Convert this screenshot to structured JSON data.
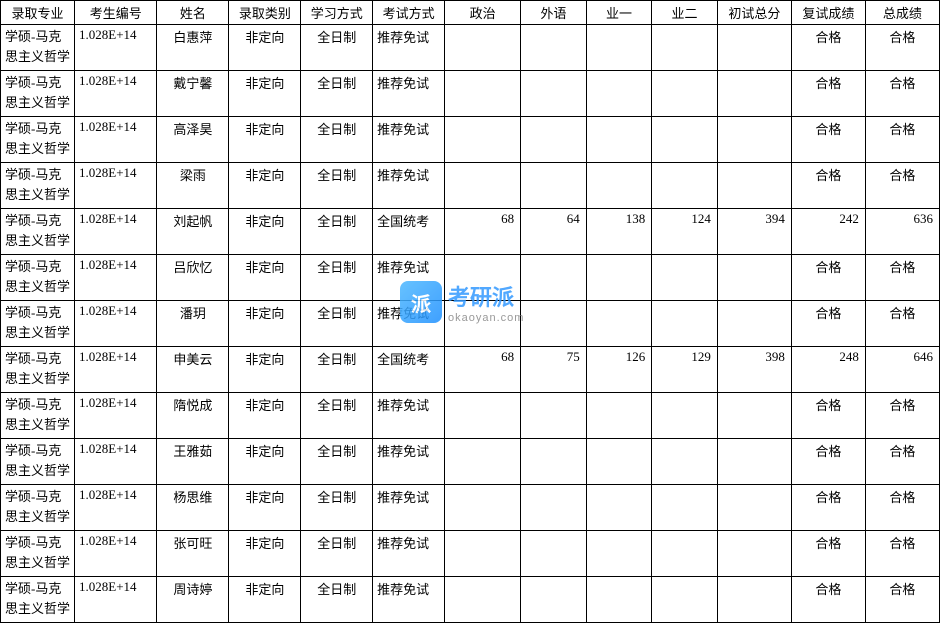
{
  "table": {
    "columns": [
      "录取专业",
      "考生编号",
      "姓名",
      "录取类别",
      "学习方式",
      "考试方式",
      "政治",
      "外语",
      "业一",
      "业二",
      "初试总分",
      "复试成绩",
      "总成绩"
    ],
    "rows": [
      {
        "major": "学硕-马克思主义哲学",
        "id": "1.028E+14",
        "name": "白惠萍",
        "type": "非定向",
        "study": "全日制",
        "exam": "推荐免试",
        "pol": "",
        "lang": "",
        "s1": "",
        "s2": "",
        "init": "",
        "re": "合格",
        "total": "合格"
      },
      {
        "major": "学硕-马克思主义哲学",
        "id": "1.028E+14",
        "name": "戴宁馨",
        "type": "非定向",
        "study": "全日制",
        "exam": "推荐免试",
        "pol": "",
        "lang": "",
        "s1": "",
        "s2": "",
        "init": "",
        "re": "合格",
        "total": "合格"
      },
      {
        "major": "学硕-马克思主义哲学",
        "id": "1.028E+14",
        "name": "高泽昊",
        "type": "非定向",
        "study": "全日制",
        "exam": "推荐免试",
        "pol": "",
        "lang": "",
        "s1": "",
        "s2": "",
        "init": "",
        "re": "合格",
        "total": "合格"
      },
      {
        "major": "学硕-马克思主义哲学",
        "id": "1.028E+14",
        "name": "梁雨",
        "type": "非定向",
        "study": "全日制",
        "exam": "推荐免试",
        "pol": "",
        "lang": "",
        "s1": "",
        "s2": "",
        "init": "",
        "re": "合格",
        "total": "合格"
      },
      {
        "major": "学硕-马克思主义哲学",
        "id": "1.028E+14",
        "name": "刘起帆",
        "type": "非定向",
        "study": "全日制",
        "exam": "全国统考",
        "pol": "68",
        "lang": "64",
        "s1": "138",
        "s2": "124",
        "init": "394",
        "re": "242",
        "total": "636"
      },
      {
        "major": "学硕-马克思主义哲学",
        "id": "1.028E+14",
        "name": "吕欣忆",
        "type": "非定向",
        "study": "全日制",
        "exam": "推荐免试",
        "pol": "",
        "lang": "",
        "s1": "",
        "s2": "",
        "init": "",
        "re": "合格",
        "total": "合格"
      },
      {
        "major": "学硕-马克思主义哲学",
        "id": "1.028E+14",
        "name": "潘玥",
        "type": "非定向",
        "study": "全日制",
        "exam": "推荐免试",
        "pol": "",
        "lang": "",
        "s1": "",
        "s2": "",
        "init": "",
        "re": "合格",
        "total": "合格"
      },
      {
        "major": "学硕-马克思主义哲学",
        "id": "1.028E+14",
        "name": "申美云",
        "type": "非定向",
        "study": "全日制",
        "exam": "全国统考",
        "pol": "68",
        "lang": "75",
        "s1": "126",
        "s2": "129",
        "init": "398",
        "re": "248",
        "total": "646"
      },
      {
        "major": "学硕-马克思主义哲学",
        "id": "1.028E+14",
        "name": "隋悦成",
        "type": "非定向",
        "study": "全日制",
        "exam": "推荐免试",
        "pol": "",
        "lang": "",
        "s1": "",
        "s2": "",
        "init": "",
        "re": "合格",
        "total": "合格"
      },
      {
        "major": "学硕-马克思主义哲学",
        "id": "1.028E+14",
        "name": "王雅茹",
        "type": "非定向",
        "study": "全日制",
        "exam": "推荐免试",
        "pol": "",
        "lang": "",
        "s1": "",
        "s2": "",
        "init": "",
        "re": "合格",
        "total": "合格"
      },
      {
        "major": "学硕-马克思主义哲学",
        "id": "1.028E+14",
        "name": "杨思维",
        "type": "非定向",
        "study": "全日制",
        "exam": "推荐免试",
        "pol": "",
        "lang": "",
        "s1": "",
        "s2": "",
        "init": "",
        "re": "合格",
        "total": "合格"
      },
      {
        "major": "学硕-马克思主义哲学",
        "id": "1.028E+14",
        "name": "张可旺",
        "type": "非定向",
        "study": "全日制",
        "exam": "推荐免试",
        "pol": "",
        "lang": "",
        "s1": "",
        "s2": "",
        "init": "",
        "re": "合格",
        "total": "合格"
      },
      {
        "major": "学硕-马克思主义哲学",
        "id": "1.028E+14",
        "name": "周诗婷",
        "type": "非定向",
        "study": "全日制",
        "exam": "推荐免试",
        "pol": "",
        "lang": "",
        "s1": "",
        "s2": "",
        "init": "",
        "re": "合格",
        "total": "合格"
      }
    ],
    "major_split": {
      "line1": "学硕-马克",
      "line2": "思主义哲学"
    }
  },
  "watermark": {
    "icon_text": "派",
    "main": "考研派",
    "sub": "okaoyan.com"
  },
  "styling": {
    "border_color": "#000000",
    "background_color": "#ffffff",
    "font_family": "SimSun",
    "base_fontsize": 13,
    "header_row_height": 22,
    "data_row_height": 46,
    "column_widths": {
      "major": 70,
      "id": 78,
      "name": 68,
      "type": 68,
      "study": 68,
      "exam": 68,
      "pol": 72,
      "lang": 62,
      "s1": 62,
      "s2": 62,
      "init": 70,
      "re": 70,
      "total": 70
    },
    "watermark_colors": {
      "icon_bg_start": "#4db8ff",
      "icon_bg_end": "#1e90ff",
      "main_text": "#3399ff",
      "sub_text": "#888888"
    }
  }
}
